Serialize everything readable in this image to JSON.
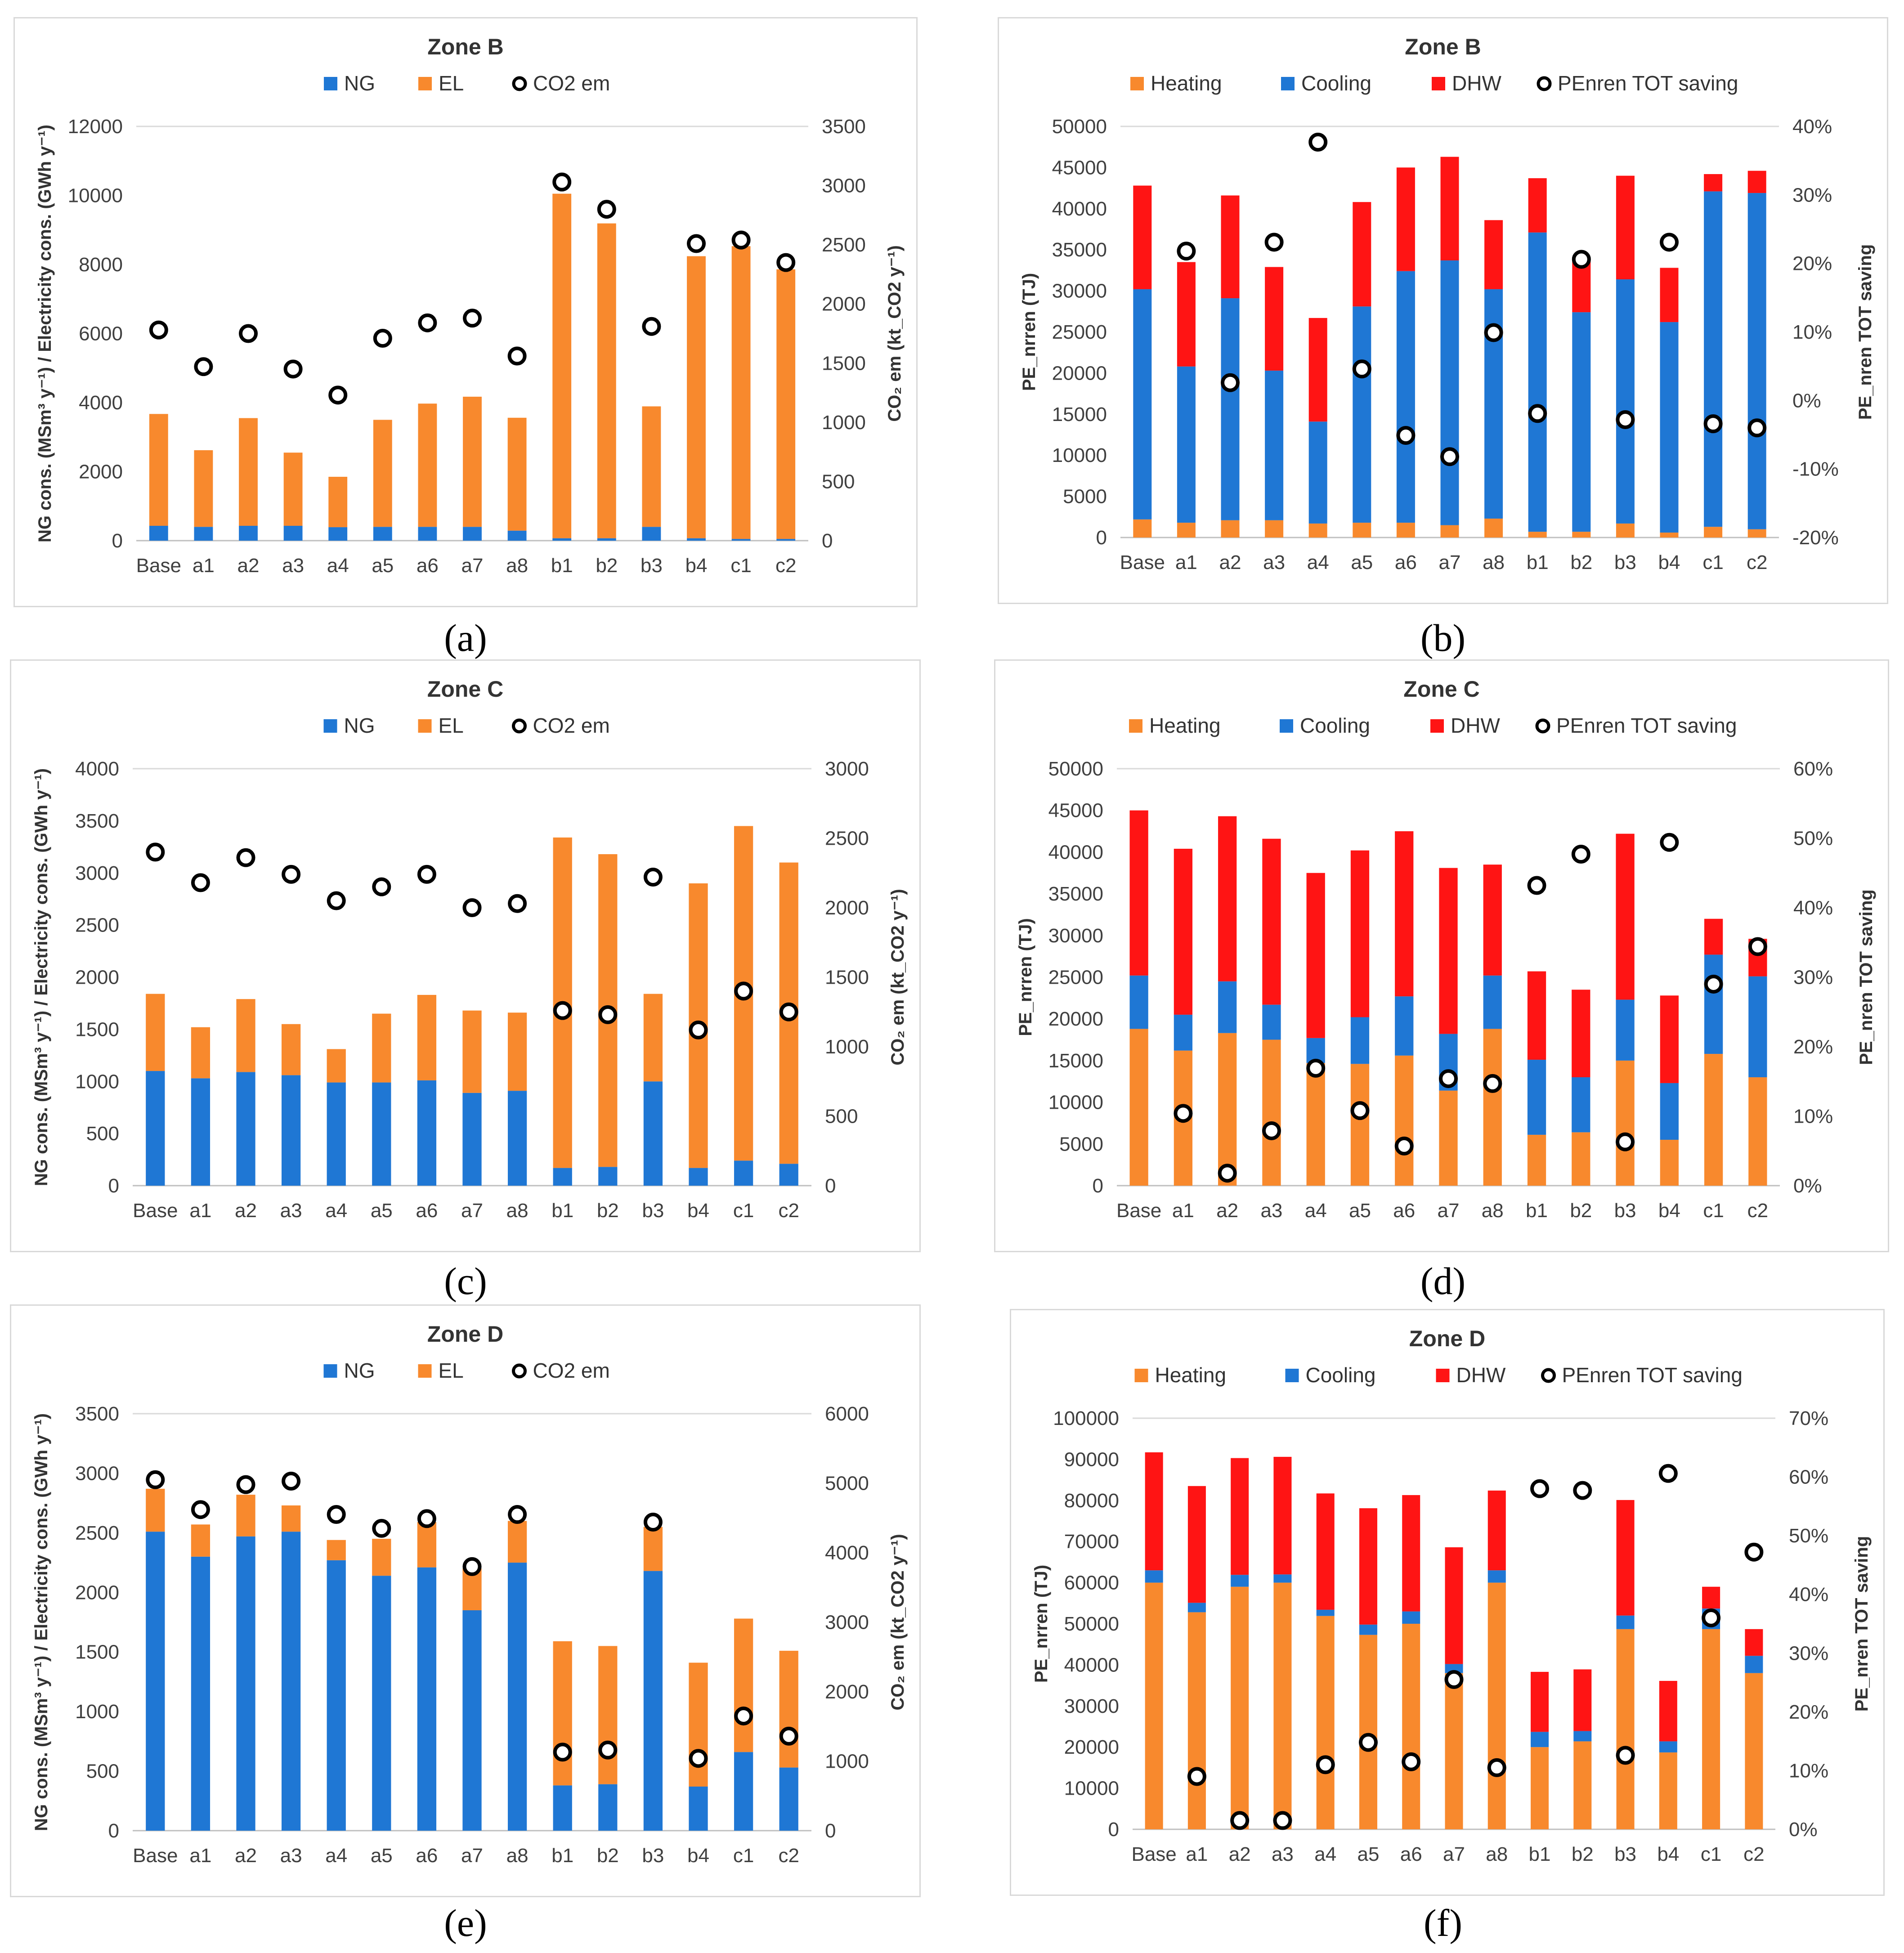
{
  "colors": {
    "NG": "#1f77d4",
    "EL": "#f8892d",
    "Heating": "#f8892d",
    "Cooling": "#1f77d4",
    "DHW": "#ff1414",
    "grid": "#d9d9d9"
  },
  "panel_labels": [
    "(a)",
    "(b)",
    "(c)",
    "(d)",
    "(e)",
    "(f)"
  ],
  "chart_data": [
    {
      "id": "a",
      "type": "bar",
      "stacked": true,
      "title": "Zone B",
      "legend": [
        "NG",
        "EL",
        "CO2 em"
      ],
      "categories": [
        "Base",
        "a1",
        "a2",
        "a3",
        "a4",
        "a5",
        "a6",
        "a7",
        "a8",
        "b1",
        "b2",
        "b3",
        "b4",
        "c1",
        "c2"
      ],
      "series": [
        {
          "name": "NG",
          "axis": "left",
          "values": [
            430,
            400,
            430,
            430,
            390,
            400,
            400,
            400,
            290,
            70,
            70,
            400,
            70,
            50,
            50
          ]
        },
        {
          "name": "EL",
          "axis": "left",
          "values": [
            3240,
            2220,
            3120,
            2120,
            1460,
            3100,
            3570,
            3770,
            3270,
            9980,
            9120,
            3490,
            8170,
            8480,
            7810
          ]
        },
        {
          "name": "CO2 em",
          "axis": "right",
          "kind": "marker",
          "values": [
            1780,
            1470,
            1750,
            1450,
            1230,
            1710,
            1840,
            1880,
            1560,
            3030,
            2800,
            1810,
            2510,
            2540,
            2350
          ]
        }
      ],
      "ylabel": "NG cons. (MSm³ y⁻¹) / Electricity cons. (GWh y⁻¹)",
      "y2label": "CO₂ em (kt_CO2 y⁻¹)",
      "ylim": [
        0,
        12000
      ],
      "yticks": [
        0,
        2000,
        4000,
        6000,
        8000,
        10000,
        12000
      ],
      "y2lim": [
        0,
        3500
      ],
      "y2ticks": [
        0,
        500,
        1000,
        1500,
        2000,
        2500,
        3000,
        3500
      ]
    },
    {
      "id": "b",
      "type": "bar",
      "stacked": true,
      "title": "Zone B",
      "legend": [
        "Heating",
        "Cooling",
        "DHW",
        "PEnren TOT saving"
      ],
      "categories": [
        "Base",
        "a1",
        "a2",
        "a3",
        "a4",
        "a5",
        "a6",
        "a7",
        "a8",
        "b1",
        "b2",
        "b3",
        "b4",
        "c1",
        "c2"
      ],
      "series": [
        {
          "name": "Heating",
          "axis": "left",
          "values": [
            2200,
            1800,
            2100,
            2100,
            1700,
            1800,
            1800,
            1500,
            2300,
            700,
            700,
            1700,
            600,
            1300,
            1000
          ]
        },
        {
          "name": "Cooling",
          "axis": "left",
          "values": [
            28000,
            19000,
            27000,
            18200,
            12400,
            26300,
            30600,
            32200,
            27900,
            36400,
            26700,
            29700,
            25600,
            40800,
            40900
          ]
        },
        {
          "name": "DHW",
          "axis": "left",
          "values": [
            12600,
            12700,
            12500,
            12600,
            12600,
            12700,
            12600,
            12600,
            8400,
            6600,
            6700,
            12600,
            6600,
            2100,
            2700
          ]
        },
        {
          "name": "PEnren TOT saving",
          "axis": "right",
          "kind": "marker",
          "values": [
            null,
            21.8,
            2.6,
            23.1,
            37.7,
            4.6,
            -5.1,
            -8.2,
            9.9,
            -1.9,
            20.6,
            -2.8,
            23.1,
            -3.4,
            -4.0
          ]
        }
      ],
      "ylabel": "PE_nrren (TJ)",
      "y2label": "PE_nren TOT saving",
      "ylim": [
        0,
        50000
      ],
      "yticks": [
        0,
        5000,
        10000,
        15000,
        20000,
        25000,
        30000,
        35000,
        40000,
        45000,
        50000
      ],
      "y2lim": [
        -20,
        40
      ],
      "y2ticks": [
        -20,
        -10,
        0,
        10,
        20,
        30,
        40
      ],
      "y2suffix": "%"
    },
    {
      "id": "c",
      "type": "bar",
      "stacked": true,
      "title": "Zone C",
      "legend": [
        "NG",
        "EL",
        "CO2 em"
      ],
      "categories": [
        "Base",
        "a1",
        "a2",
        "a3",
        "a4",
        "a5",
        "a6",
        "a7",
        "a8",
        "b1",
        "b2",
        "b3",
        "b4",
        "c1",
        "c2"
      ],
      "series": [
        {
          "name": "NG",
          "axis": "left",
          "values": [
            1100,
            1030,
            1090,
            1060,
            990,
            990,
            1010,
            890,
            910,
            170,
            180,
            1000,
            170,
            240,
            210
          ]
        },
        {
          "name": "EL",
          "axis": "left",
          "values": [
            740,
            490,
            700,
            490,
            320,
            660,
            820,
            790,
            750,
            3170,
            3000,
            840,
            2730,
            3210,
            2890
          ]
        },
        {
          "name": "CO2 em",
          "axis": "right",
          "kind": "marker",
          "values": [
            2400,
            2180,
            2360,
            2240,
            2050,
            2150,
            2240,
            2000,
            2030,
            1260,
            1230,
            2220,
            1120,
            1400,
            1250
          ]
        }
      ],
      "ylabel": "NG cons. (MSm³ y⁻¹) / Electricity cons. (GWh y⁻¹)",
      "y2label": "CO₂ em (kt_CO2 y⁻¹)",
      "ylim": [
        0,
        4000
      ],
      "yticks": [
        0,
        500,
        1000,
        1500,
        2000,
        2500,
        3000,
        3500,
        4000
      ],
      "y2lim": [
        0,
        3000
      ],
      "y2ticks": [
        0,
        500,
        1000,
        1500,
        2000,
        2500,
        3000
      ]
    },
    {
      "id": "d",
      "type": "bar",
      "stacked": true,
      "title": "Zone C",
      "legend": [
        "Heating",
        "Cooling",
        "DHW",
        "PEnren TOT saving"
      ],
      "categories": [
        "Base",
        "a1",
        "a2",
        "a3",
        "a4",
        "a5",
        "a6",
        "a7",
        "a8",
        "b1",
        "b2",
        "b3",
        "b4",
        "c1",
        "c2"
      ],
      "series": [
        {
          "name": "Heating",
          "axis": "left",
          "values": [
            18800,
            16200,
            18300,
            17500,
            14700,
            14600,
            15600,
            11400,
            18800,
            6100,
            6400,
            15000,
            5500,
            15800,
            13000
          ]
        },
        {
          "name": "Cooling",
          "axis": "left",
          "values": [
            6400,
            4300,
            6200,
            4200,
            3000,
            5600,
            7100,
            6800,
            6400,
            9000,
            6600,
            7300,
            6800,
            11900,
            12100
          ]
        },
        {
          "name": "DHW",
          "axis": "left",
          "values": [
            19800,
            19900,
            19800,
            19900,
            19800,
            20000,
            19800,
            19900,
            13300,
            10600,
            10500,
            19900,
            10500,
            4300,
            4500
          ]
        },
        {
          "name": "PEnren TOT saving",
          "axis": "right",
          "kind": "marker",
          "values": [
            null,
            10.4,
            1.8,
            7.9,
            16.9,
            10.8,
            5.7,
            15.4,
            14.7,
            43.2,
            47.7,
            6.3,
            49.4,
            29.0,
            34.4
          ]
        }
      ],
      "ylabel": "PE_nrren (TJ)",
      "y2label": "PE_nren TOT saving",
      "ylim": [
        0,
        50000
      ],
      "yticks": [
        0,
        5000,
        10000,
        15000,
        20000,
        25000,
        30000,
        35000,
        40000,
        45000,
        50000
      ],
      "y2lim": [
        0,
        60
      ],
      "y2ticks": [
        0,
        10,
        20,
        30,
        40,
        50,
        60
      ],
      "y2suffix": "%"
    },
    {
      "id": "e",
      "type": "bar",
      "stacked": true,
      "title": "Zone D",
      "legend": [
        "NG",
        "EL",
        "CO2 em"
      ],
      "categories": [
        "Base",
        "a1",
        "a2",
        "a3",
        "a4",
        "a5",
        "a6",
        "a7",
        "a8",
        "b1",
        "b2",
        "b3",
        "b4",
        "c1",
        "c2"
      ],
      "series": [
        {
          "name": "NG",
          "axis": "left",
          "values": [
            2510,
            2300,
            2470,
            2510,
            2270,
            2140,
            2210,
            1850,
            2250,
            380,
            390,
            2180,
            370,
            660,
            530
          ]
        },
        {
          "name": "EL",
          "axis": "left",
          "values": [
            360,
            270,
            350,
            220,
            170,
            310,
            380,
            350,
            350,
            1210,
            1160,
            370,
            1040,
            1120,
            980
          ]
        },
        {
          "name": "CO2 em",
          "axis": "right",
          "kind": "marker",
          "values": [
            5050,
            4620,
            4980,
            5030,
            4550,
            4350,
            4490,
            3800,
            4550,
            1130,
            1160,
            4440,
            1040,
            1650,
            1360
          ]
        }
      ],
      "ylabel": "NG cons. (MSm³ y⁻¹) / Electricity cons. (GWh y⁻¹)",
      "y2label": "CO₂ em (kt_CO2 y⁻¹)",
      "ylim": [
        0,
        3500
      ],
      "yticks": [
        0,
        500,
        1000,
        1500,
        2000,
        2500,
        3000,
        3500
      ],
      "y2lim": [
        0,
        6000
      ],
      "y2ticks": [
        0,
        1000,
        2000,
        3000,
        4000,
        5000,
        6000
      ]
    },
    {
      "id": "f",
      "type": "bar",
      "stacked": true,
      "title": "Zone D",
      "legend": [
        "Heating",
        "Cooling",
        "DHW",
        "PEnren TOT saving"
      ],
      "categories": [
        "Base",
        "a1",
        "a2",
        "a3",
        "a4",
        "a5",
        "a6",
        "a7",
        "a8",
        "b1",
        "b2",
        "b3",
        "b4",
        "c1",
        "c2"
      ],
      "series": [
        {
          "name": "Heating",
          "axis": "left",
          "values": [
            60000,
            52800,
            59000,
            60000,
            51900,
            47300,
            50000,
            38000,
            60000,
            20000,
            21400,
            48700,
            18700,
            48700,
            38000
          ]
        },
        {
          "name": "Cooling",
          "axis": "left",
          "values": [
            3000,
            2300,
            2900,
            2000,
            1500,
            2500,
            3000,
            2200,
            3000,
            3700,
            2500,
            3300,
            2700,
            5000,
            4200
          ]
        },
        {
          "name": "DHW",
          "axis": "left",
          "values": [
            28700,
            28400,
            28400,
            28600,
            28300,
            28300,
            28300,
            28400,
            19400,
            14600,
            15000,
            28100,
            14700,
            5300,
            6500
          ]
        },
        {
          "name": "PEnren TOT saving",
          "axis": "right",
          "kind": "marker",
          "values": [
            null,
            9.0,
            1.5,
            1.5,
            11.0,
            14.8,
            11.5,
            25.5,
            10.5,
            58.0,
            57.7,
            12.6,
            60.6,
            36.0,
            47.2
          ]
        }
      ],
      "ylabel": "PE_nrren (TJ)",
      "y2label": "PE_nren TOT saving",
      "ylim": [
        0,
        100000
      ],
      "yticks": [
        0,
        10000,
        20000,
        30000,
        40000,
        50000,
        60000,
        70000,
        80000,
        90000,
        100000
      ],
      "y2lim": [
        0,
        70
      ],
      "y2ticks": [
        0,
        10,
        20,
        30,
        40,
        50,
        60,
        70
      ],
      "y2suffix": "%"
    }
  ]
}
